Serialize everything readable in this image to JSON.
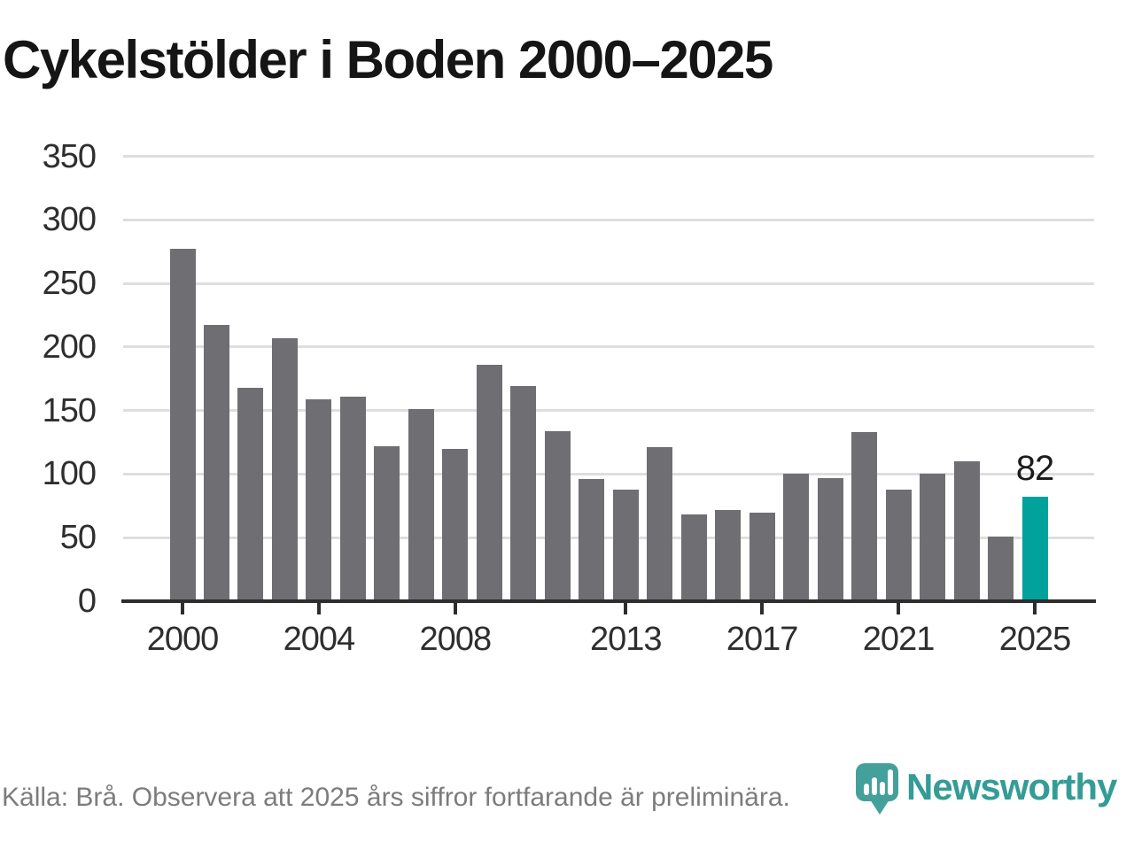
{
  "title": "Cykelstölder i Boden 2000–2025",
  "chart_data": {
    "type": "bar",
    "title": "Cykelstölder i Boden 2000–2025",
    "x": [
      2000,
      2001,
      2002,
      2003,
      2004,
      2005,
      2006,
      2007,
      2008,
      2009,
      2010,
      2011,
      2012,
      2013,
      2014,
      2015,
      2016,
      2017,
      2018,
      2019,
      2020,
      2021,
      2022,
      2023,
      2024,
      2025
    ],
    "values": [
      277,
      217,
      168,
      207,
      159,
      161,
      122,
      151,
      120,
      186,
      169,
      134,
      96,
      88,
      121,
      68,
      72,
      70,
      100,
      97,
      133,
      88,
      100,
      110,
      51,
      82
    ],
    "highlight_year": 2025,
    "highlight_value_label": "82",
    "xlabel": "",
    "ylabel": "",
    "ylim": [
      0,
      350
    ],
    "yticks": [
      0,
      50,
      100,
      150,
      200,
      250,
      300,
      350
    ],
    "xtick_years": [
      2000,
      2004,
      2008,
      2013,
      2017,
      2021,
      2025
    ],
    "grid": "horizontal",
    "legend": "none",
    "bar_color": "#6f6e72",
    "highlight_color": "#00a29b",
    "axis_color": "#2d2d2d",
    "gridline_color": "#dedede",
    "tick_label_color": "#2e2e2e"
  },
  "footer": {
    "source_note": "Källa: Brå. Observera att 2025 års siffror fortfarande är preliminära."
  },
  "logo": {
    "wordmark": "Newsworthy",
    "icon": "bar-chart-pin-icon",
    "color": "#349c96"
  }
}
